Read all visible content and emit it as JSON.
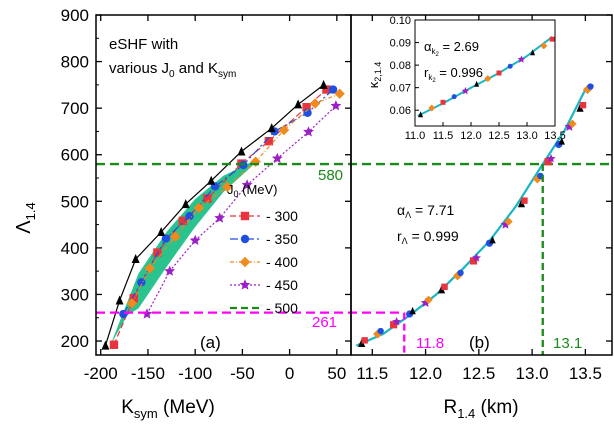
{
  "colors": {
    "frame": "#000000",
    "band": "#1fbf87",
    "limit_green": "#1a8a1a",
    "limit_magenta": "#ff00ff",
    "s300": "#e8343c",
    "s350": "#1f4fe0",
    "s400": "#f08a1e",
    "s450": "#9a1fc7",
    "s500": "#1a8a1a",
    "inset": "#19b6c4"
  },
  "shared": {
    "ylabel_main": "Λ",
    "ylabel_sub": "1.4",
    "ylim": [
      170,
      900
    ],
    "yticks": [
      "200",
      "300",
      "400",
      "500",
      "600",
      "700",
      "800",
      "900"
    ],
    "limit_upper": "580",
    "limit_lower": "261"
  },
  "chart_data": [
    {
      "panel": "(a)",
      "type": "line",
      "xlabel_main": "K",
      "xlabel_sub": "sym",
      "xlabel_unit": " (MeV)",
      "xlim": [
        -205,
        65
      ],
      "xticks": [
        "-200",
        "-150",
        "-100",
        "-50",
        "0",
        "50"
      ],
      "annotation_lines": [
        "eSHF with",
        "various J",
        "0",
        " and K",
        "sym"
      ],
      "legend_title_main": "J",
      "legend_title_sub": "0",
      "legend_title_unit": " (MeV)",
      "legend_placement": "center-right",
      "band_upper": [
        [
          -190,
          190
        ],
        [
          -160,
          345
        ],
        [
          -130,
          435
        ],
        [
          -100,
          505
        ],
        [
          -70,
          555
        ],
        [
          -40,
          585
        ]
      ],
      "band_lower": [
        [
          -40,
          575
        ],
        [
          -70,
          520
        ],
        [
          -100,
          445
        ],
        [
          -130,
          360
        ],
        [
          -160,
          270
        ],
        [
          -172,
          255
        ]
      ],
      "series": [
        {
          "name": "- 300",
          "marker": "square",
          "dash": "6,3",
          "x": [
            -186,
            -165,
            -140,
            -113,
            -87,
            -51,
            -22,
            18,
            39
          ],
          "y": [
            192,
            292,
            390,
            458,
            506,
            581,
            629,
            702,
            740
          ]
        },
        {
          "name": "- 350",
          "marker": "circle",
          "dash": "8,3,2,3",
          "x": [
            -176,
            -157,
            -131,
            -106,
            -79,
            -49,
            -16,
            19,
            46
          ],
          "y": [
            258,
            326,
            420,
            468,
            532,
            578,
            650,
            690,
            740
          ]
        },
        {
          "name": "- 400",
          "marker": "diamond",
          "dash": "4,2,1,2",
          "x": [
            -167,
            -148,
            -121,
            -96,
            -66,
            -36,
            -6,
            27,
            53
          ],
          "y": [
            281,
            356,
            424,
            486,
            531,
            585,
            653,
            710,
            731
          ]
        },
        {
          "name": "- 450",
          "marker": "star",
          "dash": "2,2",
          "x": [
            -151,
            -127,
            -100,
            -74,
            -45,
            -13,
            20,
            49
          ],
          "y": [
            258,
            350,
            416,
            464,
            535,
            592,
            649,
            705
          ]
        },
        {
          "name": "- 500",
          "marker": "triangle",
          "dash": "",
          "x": [
            -195,
            -180,
            -163,
            -136,
            -110,
            -83,
            -51,
            -19,
            9,
            36
          ],
          "y": [
            190,
            287,
            376,
            434,
            494,
            544,
            607,
            657,
            708,
            750
          ]
        }
      ]
    },
    {
      "panel": "(b)",
      "type": "scatter",
      "xlabel_main": "R",
      "xlabel_sub": "1.4",
      "xlabel_unit": " (km)",
      "xlim": [
        11.3,
        13.75
      ],
      "xticks": [
        "11.5",
        "12.0",
        "12.5",
        "13.0",
        "13.5"
      ],
      "fit_label_main": "α",
      "fit_label_sub": "Λ",
      "fit_alpha_value": " = 7.71",
      "fit_r_main": "r",
      "fit_r_sub": "Λ",
      "fit_r_value": " = 0.999",
      "limit_r_left": "11.8",
      "limit_r_right": "13.1",
      "limit_r_values": [
        11.8,
        13.1
      ],
      "fit_curve": {
        "x": [
          11.35,
          11.6,
          11.85,
          12.1,
          12.35,
          12.6,
          12.85,
          13.1,
          13.3,
          13.5
        ],
        "y": [
          190,
          215,
          255,
          300,
          355,
          415,
          490,
          580,
          650,
          740
        ]
      },
      "points": {
        "x": [
          11.4,
          11.55,
          11.7,
          11.85,
          12.0,
          12.15,
          12.3,
          12.45,
          12.6,
          12.75,
          12.9,
          13.05,
          13.15,
          13.25,
          13.35,
          13.45,
          13.52
        ],
        "y": [
          195,
          215,
          235,
          258,
          282,
          310,
          340,
          372,
          410,
          450,
          495,
          548,
          585,
          622,
          660,
          700,
          740
        ]
      }
    },
    {
      "panel": "inset",
      "type": "scatter",
      "ylabel_main": "κ",
      "ylabel_sub": "2,1.4",
      "ylim": [
        0.053,
        0.1
      ],
      "yticks": [
        "0.06",
        "0.07",
        "0.08",
        "0.09",
        "0.10"
      ],
      "xlim": [
        11.0,
        13.5
      ],
      "xticks": [
        "11.0",
        "11.5",
        "12.0",
        "12.5",
        "13.0",
        "13.5"
      ],
      "fit_label_main": "α",
      "fit_label_sub": "k",
      "fit_label_subsub": "2",
      "fit_alpha_value": " = 2.69",
      "fit_r_main": "r",
      "fit_r_value": " = 0.996",
      "fit_curve": {
        "x": [
          11.05,
          11.5,
          12.0,
          12.5,
          13.0,
          13.45
        ],
        "y": [
          0.0575,
          0.063,
          0.07,
          0.0765,
          0.084,
          0.0925
        ]
      },
      "points": {
        "x": [
          11.1,
          11.3,
          11.5,
          11.7,
          11.9,
          12.1,
          12.3,
          12.5,
          12.7,
          12.9,
          13.1,
          13.3,
          13.45
        ],
        "y": [
          0.058,
          0.061,
          0.0635,
          0.066,
          0.0685,
          0.0715,
          0.074,
          0.0765,
          0.0795,
          0.0825,
          0.0855,
          0.0885,
          0.0915
        ]
      }
    }
  ]
}
